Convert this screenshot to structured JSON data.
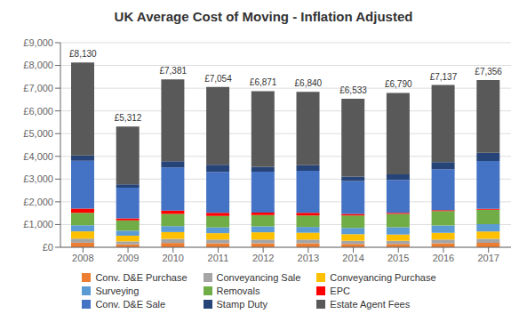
{
  "chart_data": {
    "type": "bar",
    "title": "UK Average Cost of Moving - Inflation Adjusted",
    "stacked": true,
    "grid": true,
    "legend": "bottom",
    "categories": [
      "2008",
      "2009",
      "2010",
      "2011",
      "2012",
      "2013",
      "2014",
      "2015",
      "2016",
      "2017"
    ],
    "series": [
      {
        "name": "Conv. D&E Purchase",
        "color": "#ED7D31",
        "values": [
          200,
          130,
          190,
          175,
          175,
          175,
          145,
          145,
          175,
          195
        ]
      },
      {
        "name": "Conveyancing Sale",
        "color": "#A5A5A5",
        "values": [
          180,
          130,
          180,
          165,
          165,
          165,
          140,
          140,
          165,
          180
        ]
      },
      {
        "name": "Conveyancing Purchase",
        "color": "#FFC000",
        "values": [
          320,
          250,
          300,
          280,
          320,
          300,
          290,
          275,
          295,
          320
        ]
      },
      {
        "name": "Surveying",
        "color": "#5B9BD5",
        "values": [
          270,
          220,
          255,
          255,
          255,
          255,
          275,
          320,
          320,
          320
        ]
      },
      {
        "name": "Removals",
        "color": "#70AD47",
        "values": [
          550,
          450,
          545,
          500,
          500,
          500,
          545,
          590,
          635,
          635
        ]
      },
      {
        "name": "EPC",
        "color": "#FF0000",
        "values": [
          185,
          90,
          145,
          140,
          110,
          120,
          75,
          45,
          45,
          45
        ]
      },
      {
        "name": "Conv. D&E Sale",
        "color": "#4472C4",
        "values": [
          2100,
          1350,
          1900,
          1800,
          1800,
          1850,
          1450,
          1450,
          1800,
          2100
        ]
      },
      {
        "name": "Stamp Duty",
        "color": "#264478",
        "values": [
          240,
          150,
          266,
          319,
          216,
          245,
          193,
          245,
          312,
          361
        ]
      },
      {
        "name": "Estate Agent Fees",
        "color": "#595959",
        "values": [
          4085,
          2542,
          3600,
          3420,
          3330,
          3230,
          3420,
          3580,
          3390,
          3200
        ]
      }
    ],
    "totals": [
      8130,
      5312,
      7381,
      7054,
      6871,
      6840,
      6533,
      6790,
      7137,
      7356
    ],
    "total_labels": [
      "£8,130",
      "£5,312",
      "£7,381",
      "£7,054",
      "£6,871",
      "£6,840",
      "£6,533",
      "£6,790",
      "£7,137",
      "£7,356"
    ],
    "ylim": [
      0,
      9000
    ],
    "yticks": [
      {
        "value": 0,
        "label": "£0"
      },
      {
        "value": 1000,
        "label": "£1,000"
      },
      {
        "value": 2000,
        "label": "£2,000"
      },
      {
        "value": 3000,
        "label": "£3,000"
      },
      {
        "value": 4000,
        "label": "£4,000"
      },
      {
        "value": 5000,
        "label": "£5,000"
      },
      {
        "value": 6000,
        "label": "£6,000"
      },
      {
        "value": 7000,
        "label": "£7,000"
      },
      {
        "value": 8000,
        "label": "£8,000"
      },
      {
        "value": 9000,
        "label": "£9,000"
      }
    ]
  }
}
